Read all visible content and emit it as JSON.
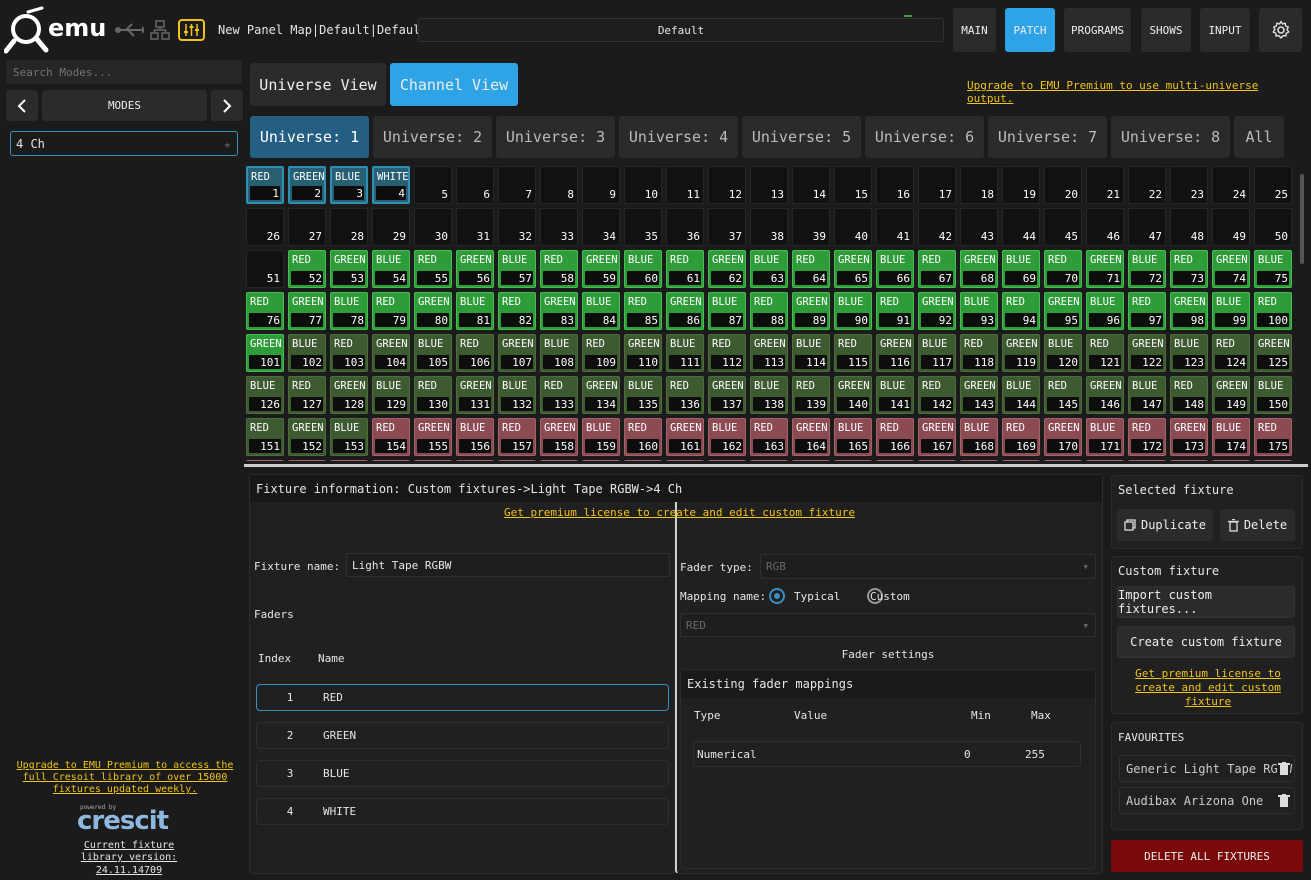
{
  "header": {
    "logo_text": "emu",
    "panel_title": "New Panel Map|Default|Default",
    "mode_label": "Default",
    "nav": [
      "MAIN",
      "PATCH",
      "PROGRAMS",
      "SHOWS",
      "INPUT"
    ],
    "active_nav": "PATCH"
  },
  "sidebar": {
    "search_placeholder": "Search Modes...",
    "modes_label": "MODES",
    "mode_item": "4 Ch",
    "upgrade_text": "Upgrade to EMU Premium to access the full Cresoit library of over 15000 fixtures updated weekly.",
    "powered_by": "powered by",
    "crescit": "crescit",
    "library_label": "Current fixture library version:",
    "library_version": "24.11.14709"
  },
  "views": {
    "universe_view": "Universe View",
    "channel_view": "Channel View",
    "upgrade_link": "Upgrade to EMU Premium to use multi-universe output."
  },
  "universe_tabs": [
    "Universe: 1",
    "Universe: 2",
    "Universe: 3",
    "Universe: 4",
    "Universe: 5",
    "Universe: 6",
    "Universe: 7",
    "Universe: 8",
    "All"
  ],
  "grid": {
    "columns": 25,
    "channels_shown": 175
  },
  "fixture_info": {
    "title": "Fixture information: Custom fixtures->Light Tape RGBW->4 Ch",
    "premium_link": "Get premium license to create and edit custom fixture",
    "name_label": "Fixture name:",
    "name_value": "Light Tape RGBW",
    "faders_label": "Faders",
    "index_header": "Index",
    "name_header": "Name",
    "faders": [
      {
        "index": "1",
        "name": "RED"
      },
      {
        "index": "2",
        "name": "GREEN"
      },
      {
        "index": "3",
        "name": "BLUE"
      },
      {
        "index": "4",
        "name": "WHITE"
      }
    ],
    "fader_type_label": "Fader type:",
    "fader_type_value": "RGB",
    "mapping_label": "Mapping name:",
    "typical": "Typical",
    "custom": "Custom",
    "mapping_select": "RED",
    "fader_settings": "Fader settings",
    "existing_mappings": "Existing fader mappings",
    "mapping_headers": {
      "type": "Type",
      "value": "Value",
      "min": "Min",
      "max": "Max"
    },
    "mapping_row": {
      "type": "Numerical",
      "value": "",
      "min": "0",
      "max": "255"
    }
  },
  "right": {
    "selected_fixture": "Selected fixture",
    "duplicate": "Duplicate",
    "delete": "Delete",
    "custom_fixture": "Custom fixture",
    "import": "Import custom fixtures...",
    "create": "Create custom fixture",
    "premium_link": "Get premium license to create and edit custom fixture",
    "favourites": "FAVOURITES",
    "fav_items": [
      "Generic Light Tape RGBW",
      "Audibax Arizona One"
    ],
    "delete_all": "DELETE ALL FIXTURES"
  }
}
